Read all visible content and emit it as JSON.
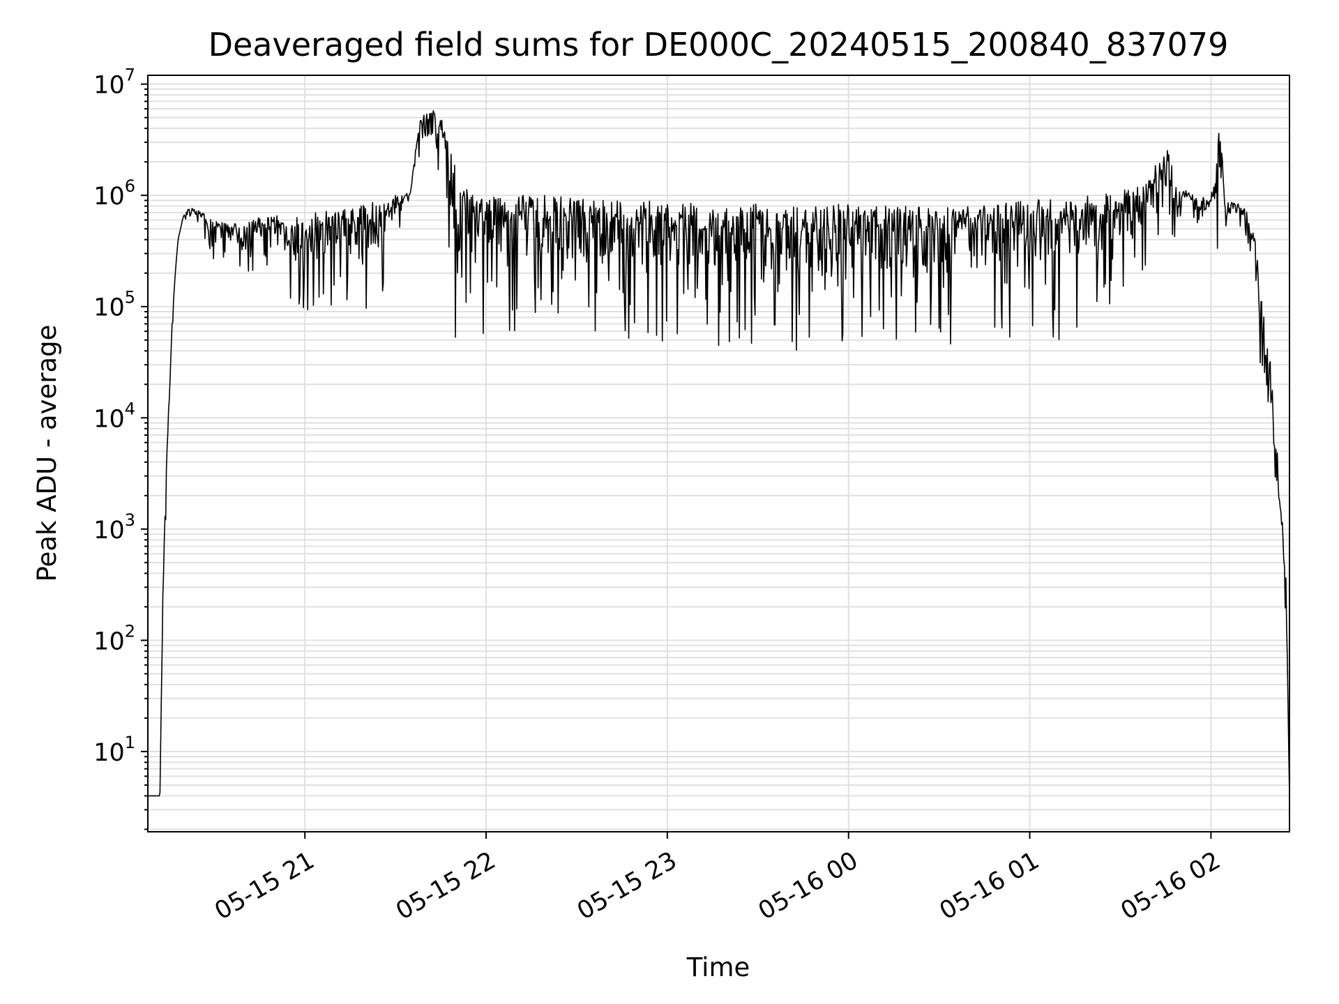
{
  "chart_data": {
    "type": "line",
    "title": "Deaveraged field sums for DE000C_20240515_200840_837079",
    "xlabel": "Time",
    "ylabel": "Peak ADU - average",
    "yscale": "log",
    "ylim": [
      1.9,
      12000000
    ],
    "xlim": [
      "2024-05-15 20:08",
      "2024-05-16 02:26"
    ],
    "grid": "on",
    "legend": "none",
    "colors": {
      "line": "#000000",
      "grid": "#e0e0e0",
      "axes": "#000000"
    },
    "x_ticks": [
      {
        "value": "2024-05-15 21:00",
        "label": "05-15 21"
      },
      {
        "value": "2024-05-15 22:00",
        "label": "05-15 22"
      },
      {
        "value": "2024-05-15 23:00",
        "label": "05-15 23"
      },
      {
        "value": "2024-05-16 00:00",
        "label": "05-16 00"
      },
      {
        "value": "2024-05-16 01:00",
        "label": "05-16 01"
      },
      {
        "value": "2024-05-16 02:00",
        "label": "05-16 02"
      }
    ],
    "y_ticks": [
      {
        "value": 10,
        "base": "10",
        "exp": "1"
      },
      {
        "value": 100,
        "base": "10",
        "exp": "2"
      },
      {
        "value": 1000,
        "base": "10",
        "exp": "3"
      },
      {
        "value": 10000,
        "base": "10",
        "exp": "4"
      },
      {
        "value": 100000,
        "base": "10",
        "exp": "5"
      },
      {
        "value": 1000000,
        "base": "10",
        "exp": "6"
      },
      {
        "value": 10000000,
        "base": "10",
        "exp": "7"
      }
    ],
    "series": [
      {
        "x": [
          "2024-05-15 20:08",
          "2024-05-15 20:11",
          "2024-05-15 20:12",
          "2024-05-15 20:13",
          "2024-05-15 20:14",
          "2024-05-15 20:15",
          "2024-05-15 20:16",
          "2024-05-15 20:17",
          "2024-05-15 20:18",
          "2024-05-15 20:20",
          "2024-05-15 20:22",
          "2024-05-15 20:24",
          "2024-05-15 20:26",
          "2024-05-15 20:28",
          "2024-05-15 20:30",
          "2024-05-15 20:35",
          "2024-05-15 20:40",
          "2024-05-15 20:45",
          "2024-05-15 20:50",
          "2024-05-15 20:55",
          "2024-05-15 21:00",
          "2024-05-15 21:05",
          "2024-05-15 21:10",
          "2024-05-15 21:15",
          "2024-05-15 21:20",
          "2024-05-15 21:25",
          "2024-05-15 21:30",
          "2024-05-15 21:35",
          "2024-05-15 21:38",
          "2024-05-15 21:42",
          "2024-05-15 21:45",
          "2024-05-15 21:48",
          "2024-05-15 21:51",
          "2024-05-15 21:55",
          "2024-05-15 22:00",
          "2024-05-15 22:10",
          "2024-05-15 22:20",
          "2024-05-15 22:30",
          "2024-05-15 22:40",
          "2024-05-15 22:50",
          "2024-05-15 23:00",
          "2024-05-15 23:10",
          "2024-05-15 23:20",
          "2024-05-15 23:30",
          "2024-05-15 23:40",
          "2024-05-15 23:50",
          "2024-05-16 00:00",
          "2024-05-16 00:10",
          "2024-05-16 00:20",
          "2024-05-16 00:30",
          "2024-05-16 00:40",
          "2024-05-16 00:50",
          "2024-05-16 01:00",
          "2024-05-16 01:10",
          "2024-05-16 01:20",
          "2024-05-16 01:30",
          "2024-05-16 01:35",
          "2024-05-16 01:40",
          "2024-05-16 01:45",
          "2024-05-16 01:50",
          "2024-05-16 01:55",
          "2024-05-16 02:00",
          "2024-05-16 02:03",
          "2024-05-16 02:05",
          "2024-05-16 02:10",
          "2024-05-16 02:12",
          "2024-05-16 02:15",
          "2024-05-16 02:18",
          "2024-05-16 02:20",
          "2024-05-16 02:22",
          "2024-05-16 02:24",
          "2024-05-16 02:25",
          "2024-05-16 02:26"
        ],
        "upper": [
          4,
          4,
          4,
          300,
          3000,
          20000,
          70000,
          200000,
          400000,
          700000,
          800000,
          750000,
          700000,
          650000,
          600000,
          550000,
          600000,
          650000,
          650000,
          700000,
          700000,
          700000,
          750000,
          800000,
          850000,
          900000,
          1000000,
          1100000,
          5500000,
          6000000,
          5500000,
          3000000,
          1500000,
          1000000,
          1000000,
          1000000,
          1000000,
          950000,
          950000,
          900000,
          900000,
          850000,
          850000,
          850000,
          800000,
          800000,
          850000,
          800000,
          800000,
          800000,
          800000,
          850000,
          900000,
          950000,
          1000000,
          1100000,
          1200000,
          1500000,
          3000000,
          1200000,
          1000000,
          950000,
          4500000,
          900000,
          850000,
          700000,
          400000,
          60000,
          40000,
          5000,
          1000,
          300,
          4
        ],
        "lower": [
          4,
          4,
          4,
          200,
          1000,
          8000,
          50000,
          150000,
          400000,
          600000,
          600000,
          550000,
          500000,
          300000,
          250000,
          200000,
          180000,
          170000,
          170000,
          100000,
          90000,
          90000,
          80000,
          80000,
          75000,
          75000,
          300000,
          1000000,
          2000000,
          1500000,
          1000000,
          60000,
          45000,
          55000,
          55000,
          55000,
          60000,
          55000,
          50000,
          45000,
          40000,
          42000,
          45000,
          45000,
          40000,
          38000,
          40000,
          42000,
          45000,
          45000,
          45000,
          42000,
          45000,
          45000,
          80000,
          100000,
          150000,
          250000,
          350000,
          400000,
          500000,
          500000,
          250000,
          500000,
          500000,
          200000,
          40000,
          10000,
          2000,
          300,
          100,
          50,
          4
        ]
      }
    ]
  }
}
